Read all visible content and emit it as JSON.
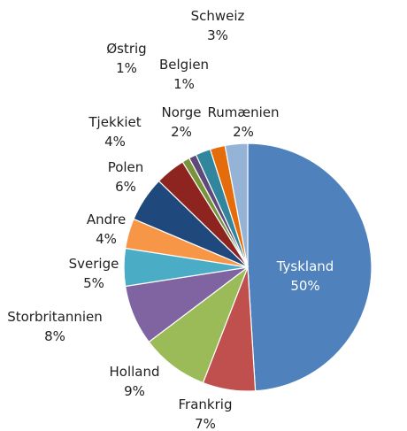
{
  "chart_data": {
    "type": "pie",
    "title": "",
    "legend": "none",
    "slices": [
      {
        "name": "Tyskland",
        "value": 50,
        "label": "50%",
        "color": "#4F81BD"
      },
      {
        "name": "Frankrig",
        "value": 7,
        "label": "7%",
        "color": "#C0504D"
      },
      {
        "name": "Holland",
        "value": 9,
        "label": "9%",
        "color": "#9BBB59"
      },
      {
        "name": "Storbritannien",
        "value": 8,
        "label": "8%",
        "color": "#8064A2"
      },
      {
        "name": "Sverige",
        "value": 5,
        "label": "5%",
        "color": "#4BACC6"
      },
      {
        "name": "Andre",
        "value": 4,
        "label": "4%",
        "color": "#F79646"
      },
      {
        "name": "Polen",
        "value": 6,
        "label": "6%",
        "color": "#1F497D"
      },
      {
        "name": "Tjekkiet",
        "value": 4,
        "label": "4%",
        "color": "#8E2420"
      },
      {
        "name": "Østrig",
        "value": 1,
        "label": "1%",
        "color": "#77933C"
      },
      {
        "name": "Belgien",
        "value": 1,
        "label": "1%",
        "color": "#5F497A"
      },
      {
        "name": "Norge",
        "value": 2,
        "label": "2%",
        "color": "#31859C"
      },
      {
        "name": "Rumænien",
        "value": 2,
        "label": "2%",
        "color": "#E46C0A"
      },
      {
        "name": "Schweiz",
        "value": 3,
        "label": "3%",
        "color": "#95B3D7"
      }
    ]
  }
}
